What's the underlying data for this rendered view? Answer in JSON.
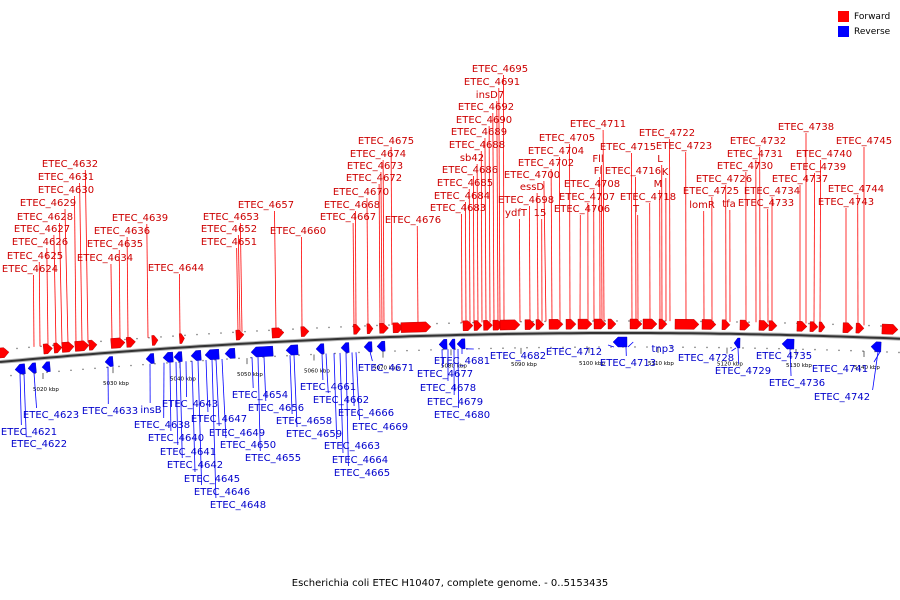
{
  "legend": {
    "forward_label": "Forward",
    "forward_color": "#ff0000",
    "reverse_label": "Reverse",
    "reverse_color": "#0000ff"
  },
  "caption": "Escherichia coli ETEC H10407, complete genome. - 0..5153435",
  "ticks": [
    "5020 kbp",
    "5030 kbp",
    "5040 kbp",
    "5050 kbp",
    "5060 kbp",
    "5070 kbp",
    "5080 kbp",
    "5090 kbp",
    "5100 kbp",
    "5110 kbp",
    "5120 kbp",
    "5130 kbp",
    "5140 kbp"
  ],
  "forward_genes": [
    "ETEC_4624",
    "ETEC_4625",
    "ETEC_4626",
    "ETEC_4627",
    "ETEC_4628",
    "ETEC_4629",
    "ETEC_4630",
    "ETEC_4631",
    "ETEC_4632",
    "ETEC_4634",
    "ETEC_4635",
    "ETEC_4636",
    "ETEC_4639",
    "ETEC_4644",
    "ETEC_4651",
    "ETEC_4652",
    "ETEC_4653",
    "ETEC_4657",
    "ETEC_4660",
    "ETEC_4667",
    "ETEC_4668",
    "ETEC_4670",
    "ETEC_4672",
    "ETEC_4673",
    "ETEC_4674",
    "ETEC_4675",
    "ETEC_4676",
    "ETEC_4683",
    "ETEC_4684",
    "ETEC_4685",
    "ETEC_4686",
    "sb42",
    "ETEC_4688",
    "ETEC_4689",
    "ETEC_4690",
    "ETEC_4692",
    "insD7",
    "ETEC_4691",
    "ETEC_4695",
    "ydfT",
    "ETEC_4698",
    "15",
    "essD",
    "ETEC_4700",
    "ETEC_4702",
    "ETEC_4704",
    "ETEC_4705",
    "ETEC_4706",
    "ETEC_4707",
    "ETEC_4708",
    "Fl",
    "Fll",
    "ETEC_4711",
    "ETEC_4715",
    "ETEC_4716",
    "T",
    "ETEC_4718",
    "M",
    "K",
    "L",
    "ETEC_4722",
    "ETEC_4723",
    "lomR",
    "ETEC_4725",
    "ETEC_4726",
    "tfa",
    "ETEC_4730",
    "ETEC_4731",
    "ETEC_4732",
    "ETEC_4733",
    "ETEC_4734",
    "ETEC_4737",
    "ETEC_4738",
    "ETEC_4739",
    "ETEC_4740",
    "ETEC_4743",
    "ETEC_4744",
    "ETEC_4745"
  ],
  "reverse_genes": [
    "ETEC_4621",
    "ETEC_4622",
    "ETEC_4623",
    "ETEC_4633",
    "insB",
    "ETEC_4638",
    "ETEC_4640",
    "ETEC_4641",
    "ETEC_4642",
    "ETEC_4643",
    "ETEC_4645",
    "ETEC_4646",
    "ETEC_4647",
    "ETEC_4648",
    "ETEC_4649",
    "ETEC_4650",
    "ETEC_4654",
    "ETEC_4655",
    "ETEC_4656",
    "ETEC_4658",
    "ETEC_4659",
    "ETEC_4661",
    "ETEC_4662",
    "ETEC_4663",
    "ETEC_4664",
    "ETEC_4665",
    "ETEC_4666",
    "ETEC_4669",
    "ETEC_4671",
    "ETEC_4677",
    "ETEC_4678",
    "ETEC_4679",
    "ETEC_4680",
    "ETEC_4681",
    "ETEC_4682",
    "ETEC_4712",
    "ETEC_4713",
    "tnp3",
    "ETEC_4728",
    "ETEC_4729",
    "ETEC_4735",
    "ETEC_4736",
    "ETEC_4741",
    "ETEC_4742"
  ]
}
